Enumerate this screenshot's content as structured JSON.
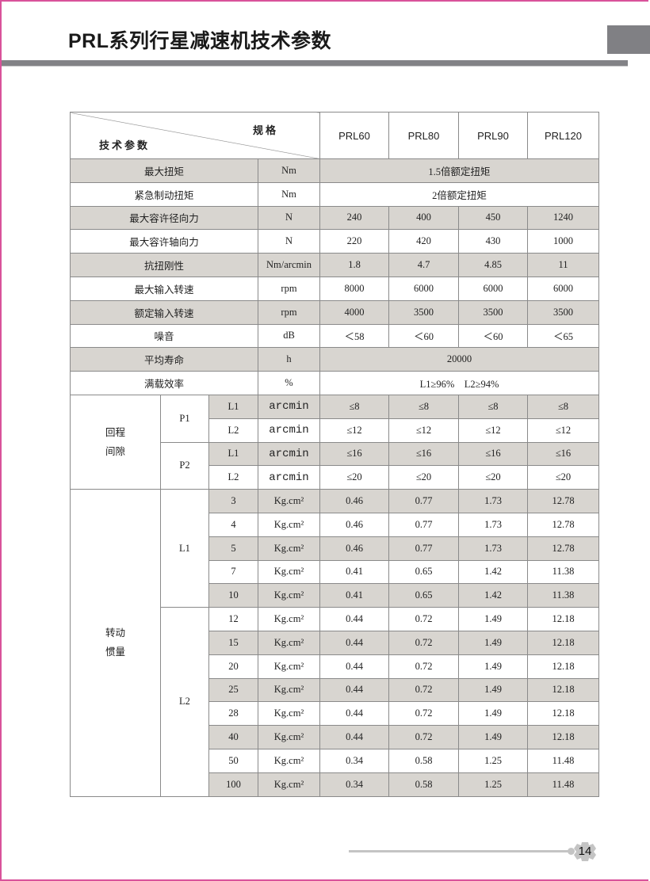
{
  "title": "PRL系列行星减速机技术参数",
  "page_number": "14",
  "colors": {
    "border": "#d9529a",
    "shade": "#d8d5d0",
    "bar": "#828286"
  },
  "header": {
    "spec_label": "规格",
    "param_label": "技术参数",
    "models": [
      "PRL60",
      "PRL80",
      "PRL90",
      "PRL120"
    ]
  },
  "simple_rows": [
    {
      "label": "最大扭矩",
      "unit": "Nm",
      "merged": "1.5倍额定扭矩",
      "shaded": true
    },
    {
      "label": "紧急制动扭矩",
      "unit": "Nm",
      "merged": "2倍额定扭矩",
      "shaded": false
    },
    {
      "label": "最大容许径向力",
      "unit": "N",
      "values": [
        "240",
        "400",
        "450",
        "1240"
      ],
      "shaded": true
    },
    {
      "label": "最大容许轴向力",
      "unit": "N",
      "values": [
        "220",
        "420",
        "430",
        "1000"
      ],
      "shaded": false
    },
    {
      "label": "抗扭刚性",
      "unit": "Nm/arcmin",
      "values": [
        "1.8",
        "4.7",
        "4.85",
        "11"
      ],
      "shaded": true
    },
    {
      "label": "最大输入转速",
      "unit": "rpm",
      "values": [
        "8000",
        "6000",
        "6000",
        "6000"
      ],
      "shaded": false
    },
    {
      "label": "额定输入转速",
      "unit": "rpm",
      "values": [
        "4000",
        "3500",
        "3500",
        "3500"
      ],
      "shaded": true
    },
    {
      "label": "噪音",
      "unit": "dB",
      "values": [
        "＜58",
        "＜60",
        "＜60",
        "＜65"
      ],
      "shaded": false
    },
    {
      "label": "平均寿命",
      "unit": "h",
      "merged": "20000",
      "shaded": true
    },
    {
      "label": "满载效率",
      "unit": "%",
      "merged": "L1≥96%　L2≥94%",
      "shaded": false
    }
  ],
  "backlash": {
    "label": "回程\n间隙",
    "groups": [
      {
        "name": "P1",
        "rows": [
          {
            "stage": "L1",
            "unit": "arcmin",
            "values": [
              "≤8",
              "≤8",
              "≤8",
              "≤8"
            ]
          },
          {
            "stage": "L2",
            "unit": "arcmin",
            "values": [
              "≤12",
              "≤12",
              "≤12",
              "≤12"
            ]
          }
        ]
      },
      {
        "name": "P2",
        "rows": [
          {
            "stage": "L1",
            "unit": "arcmin",
            "values": [
              "≤16",
              "≤16",
              "≤16",
              "≤16"
            ]
          },
          {
            "stage": "L2",
            "unit": "arcmin",
            "values": [
              "≤20",
              "≤20",
              "≤20",
              "≤20"
            ]
          }
        ]
      }
    ]
  },
  "inertia": {
    "label": "转动\n惯量",
    "unit": "Kg.cm²",
    "groups": [
      {
        "name": "L1",
        "rows": [
          {
            "ratio": "3",
            "values": [
              "0.46",
              "0.77",
              "1.73",
              "12.78"
            ]
          },
          {
            "ratio": "4",
            "values": [
              "0.46",
              "0.77",
              "1.73",
              "12.78"
            ]
          },
          {
            "ratio": "5",
            "values": [
              "0.46",
              "0.77",
              "1.73",
              "12.78"
            ]
          },
          {
            "ratio": "7",
            "values": [
              "0.41",
              "0.65",
              "1.42",
              "11.38"
            ]
          },
          {
            "ratio": "10",
            "values": [
              "0.41",
              "0.65",
              "1.42",
              "11.38"
            ]
          }
        ]
      },
      {
        "name": "L2",
        "rows": [
          {
            "ratio": "12",
            "values": [
              "0.44",
              "0.72",
              "1.49",
              "12.18"
            ]
          },
          {
            "ratio": "15",
            "values": [
              "0.44",
              "0.72",
              "1.49",
              "12.18"
            ]
          },
          {
            "ratio": "20",
            "values": [
              "0.44",
              "0.72",
              "1.49",
              "12.18"
            ]
          },
          {
            "ratio": "25",
            "values": [
              "0.44",
              "0.72",
              "1.49",
              "12.18"
            ]
          },
          {
            "ratio": "28",
            "values": [
              "0.44",
              "0.72",
              "1.49",
              "12.18"
            ]
          },
          {
            "ratio": "40",
            "values": [
              "0.44",
              "0.72",
              "1.49",
              "12.18"
            ]
          },
          {
            "ratio": "50",
            "values": [
              "0.34",
              "0.58",
              "1.25",
              "11.48"
            ]
          },
          {
            "ratio": "100",
            "values": [
              "0.34",
              "0.58",
              "1.25",
              "11.48"
            ]
          }
        ]
      }
    ]
  }
}
